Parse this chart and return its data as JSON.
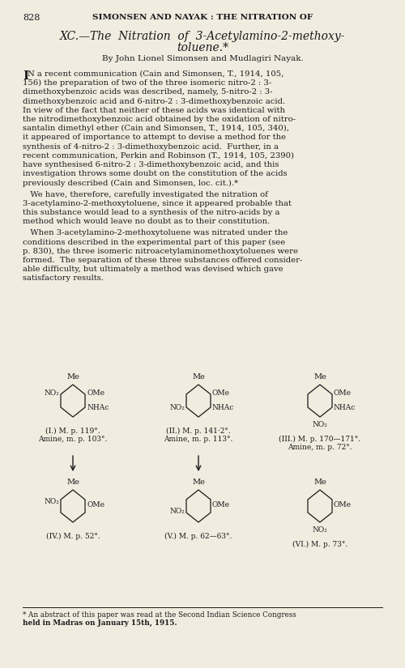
{
  "page_number": "828",
  "header": "SIMONSEN AND NAYAK : THE NITRATION OF",
  "title_line1": "XC.—The  Nitration  of  3-Acetylamino-2-methoxy-",
  "title_line2": "toluene.*",
  "byline": "By John Lionel Simonsen and Mudlagiri Nayak.",
  "background_color": "#f0ece0",
  "text_color": "#1a1a1a"
}
